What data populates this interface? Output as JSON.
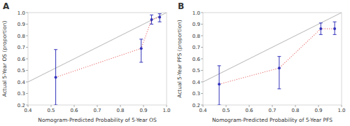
{
  "chart_data": [
    {
      "type": "scatter",
      "title": "A",
      "xlabel": "Nomogram-Predicted Probability of 5-Year OS",
      "ylabel": "Actual 5-Year OS (proportion)",
      "xlim": [
        0.4,
        1.0
      ],
      "ylim": [
        0.2,
        1.0
      ],
      "xticks": [
        0.4,
        0.5,
        0.6,
        0.7,
        0.8,
        0.9,
        {
          "value": 1.0,
          "label": "1.0"
        }
      ],
      "yticks": [
        0.2,
        0.3,
        0.4,
        0.5,
        0.6,
        0.7,
        0.8,
        0.9,
        {
          "value": 1.0,
          "label": "1.0"
        }
      ],
      "series": [
        {
          "type": "line",
          "color": "#bbbbbb",
          "line_style": "solid",
          "x": [
            0.4,
            1.0
          ],
          "values": [
            0.4,
            1.0
          ]
        },
        {
          "type": "line",
          "color": "#e87070",
          "line_style": "dotted",
          "x": [
            0.52,
            0.89,
            0.935,
            0.97
          ],
          "values": [
            0.44,
            0.69,
            0.94,
            0.96
          ]
        },
        {
          "type": "scatter",
          "color": "#3333bb",
          "marker": "circle",
          "x": [
            0.52,
            0.89,
            0.935,
            0.97
          ],
          "values": [
            0.44,
            0.69,
            0.94,
            0.96
          ],
          "errors_low": [
            0.24,
            0.12,
            0.04,
            0.04
          ],
          "errors_high": [
            0.24,
            0.08,
            0.04,
            0.03
          ]
        }
      ]
    },
    {
      "type": "scatter",
      "title": "B",
      "xlabel": "Nomogram-Predicted Probability of 5-Year PFS",
      "ylabel": "Actual 5-Year PFS (proportion)",
      "xlim": [
        0.4,
        1.0
      ],
      "ylim": [
        0.2,
        1.0
      ],
      "xticks": [
        0.4,
        0.5,
        0.6,
        0.7,
        0.8,
        0.9,
        {
          "value": 1.0,
          "label": "1.0"
        }
      ],
      "yticks": [
        0.2,
        0.3,
        0.4,
        0.5,
        0.6,
        0.7,
        0.8,
        0.9,
        {
          "value": 1.0,
          "label": "1.0"
        }
      ],
      "series": [
        {
          "type": "line",
          "color": "#bbbbbb",
          "line_style": "solid",
          "x": [
            0.4,
            1.0
          ],
          "values": [
            0.4,
            1.0
          ]
        },
        {
          "type": "line",
          "color": "#e87070",
          "line_style": "dotted",
          "x": [
            0.47,
            0.73,
            0.91,
            0.97
          ],
          "values": [
            0.38,
            0.52,
            0.86,
            0.86
          ]
        },
        {
          "type": "scatter",
          "color": "#3333bb",
          "marker": "circle",
          "x": [
            0.47,
            0.73,
            0.91,
            0.97
          ],
          "values": [
            0.38,
            0.52,
            0.86,
            0.86
          ],
          "errors_low": [
            0.18,
            0.18,
            0.05,
            0.05
          ],
          "errors_high": [
            0.16,
            0.1,
            0.05,
            0.06
          ]
        }
      ]
    }
  ]
}
